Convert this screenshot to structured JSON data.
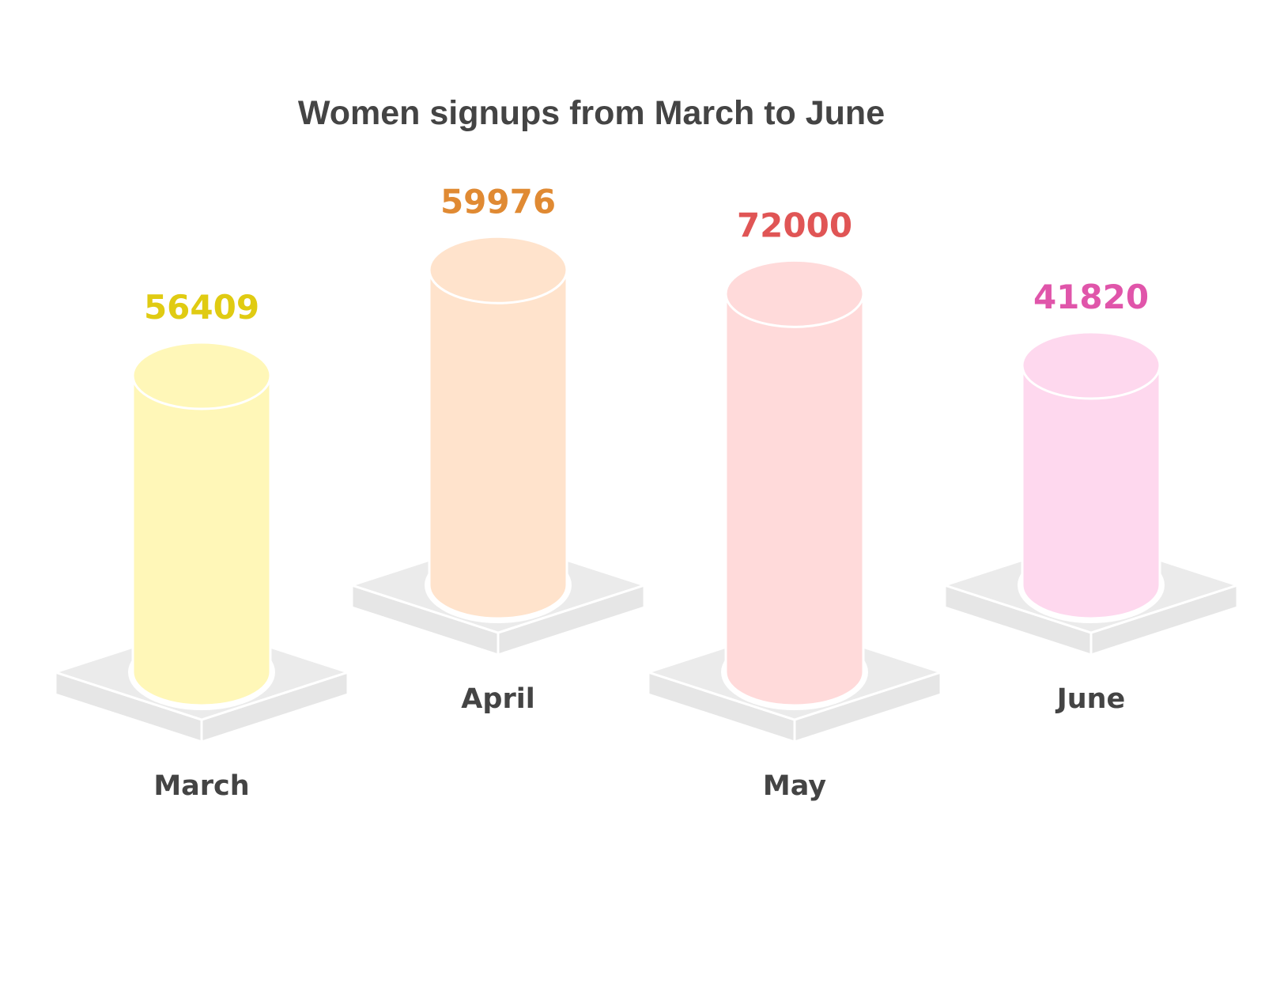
{
  "chart_data": {
    "type": "bar",
    "title": "Women signups from March to June",
    "categories": [
      "March",
      "April",
      "May",
      "June"
    ],
    "values": [
      56409,
      59976,
      72000,
      41820
    ],
    "colors": {
      "body": [
        "#FFF7B8",
        "#FFE3CC",
        "#FFDADA",
        "#FED8EE"
      ],
      "label": [
        "#E0CB12",
        "#E08A33",
        "#E05555",
        "#E055AA"
      ],
      "base": "#EBEBEB",
      "category_text": "#444444"
    },
    "style": "3d-cylinder",
    "grid": false,
    "legend": "none"
  }
}
